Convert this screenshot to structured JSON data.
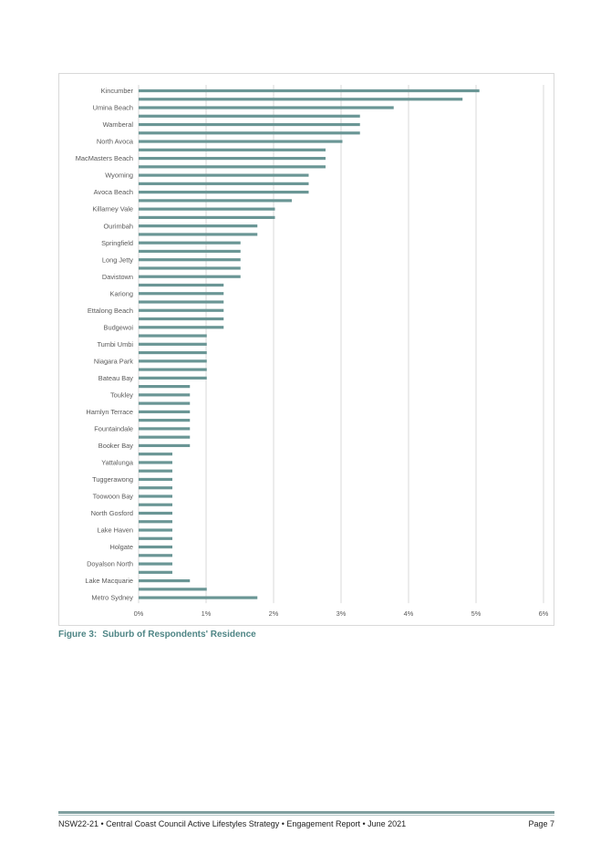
{
  "figure": {
    "label": "Figure 3:",
    "title": "Suburb of Respondents' Residence"
  },
  "footer": {
    "left": "NSW22-21 • Central Coast Council Active Lifestyles Strategy • Engagement Report • June 2021",
    "page": "Page 7"
  },
  "chart_data": {
    "type": "bar",
    "orientation": "horizontal",
    "bar_color": "#6a9695",
    "grid": true,
    "xlim": [
      0,
      6
    ],
    "x_ticks": [
      "0%",
      "1%",
      "2%",
      "3%",
      "4%",
      "5%",
      "6%"
    ],
    "labeled_categories": [
      "Kincumber",
      "Umina Beach",
      "Wamberal",
      "North Avoca",
      "MacMasters Beach",
      "Wyoming",
      "Avoca Beach",
      "Killarney Vale",
      "Ourimbah",
      "Springfield",
      "Long Jetty",
      "Davistown",
      "Kariong",
      "Ettalong Beach",
      "Budgewoi",
      "Tumbi Umbi",
      "Niagara Park",
      "Bateau Bay",
      "Toukley",
      "Hamlyn Terrace",
      "Fountaindale",
      "Booker Bay",
      "Yattalunga",
      "Tuggerawong",
      "Toowoon Bay",
      "North Gosford",
      "Lake Haven",
      "Holgate",
      "Doyalson North",
      "Lake Macquarie",
      "Metro Sydney"
    ],
    "values": [
      5.05,
      4.8,
      3.78,
      3.28,
      3.28,
      3.28,
      3.02,
      2.77,
      2.77,
      2.77,
      2.52,
      2.52,
      2.52,
      2.27,
      2.02,
      2.02,
      1.76,
      1.76,
      1.51,
      1.51,
      1.51,
      1.51,
      1.51,
      1.26,
      1.26,
      1.26,
      1.26,
      1.26,
      1.26,
      1.01,
      1.01,
      1.01,
      1.01,
      1.01,
      1.01,
      0.76,
      0.76,
      0.76,
      0.76,
      0.76,
      0.76,
      0.76,
      0.76,
      0.5,
      0.5,
      0.5,
      0.5,
      0.5,
      0.5,
      0.5,
      0.5,
      0.5,
      0.5,
      0.5,
      0.5,
      0.5,
      0.5,
      0.5,
      0.76,
      1.01,
      1.76
    ]
  }
}
